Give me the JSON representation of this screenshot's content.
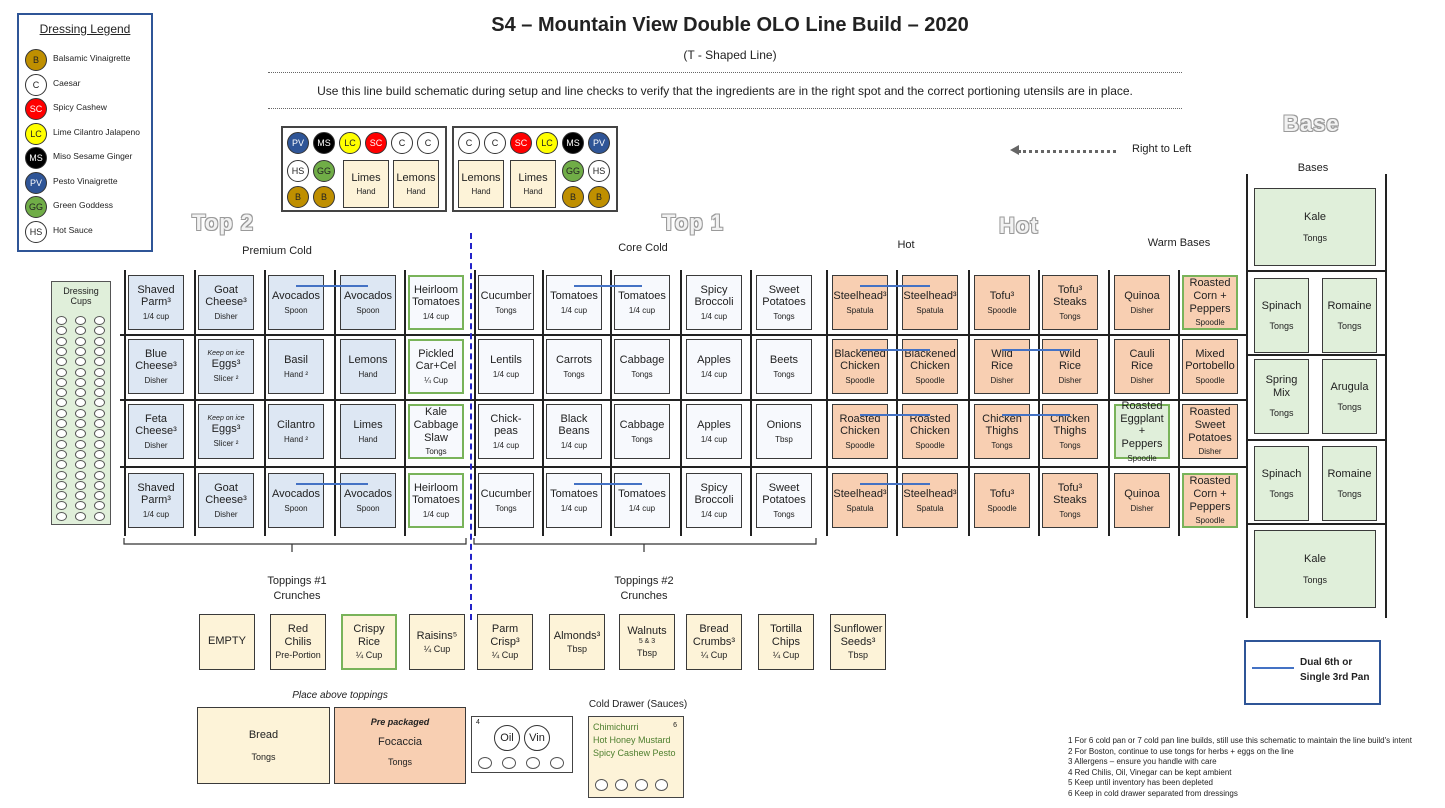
{
  "title": "S4 – Mountain View Double OLO Line Build – 2020",
  "subtitle": "(T -  Shaped Line)",
  "instruction": "Use this line build schematic during setup and line checks to verify that the ingredients are in the right spot and the correct portioning utensils are in place.",
  "direction": "Right to Left",
  "legend": {
    "title": "Dressing Legend",
    "items": [
      {
        "code": "B",
        "label": "Balsamic Vinaigrette",
        "color": "#bf8f00"
      },
      {
        "code": "C",
        "label": "Caesar",
        "color": "#ffffff"
      },
      {
        "code": "SC",
        "label": "Spicy Cashew",
        "color": "#ff0000"
      },
      {
        "code": "LC",
        "label": "Lime Cilantro Jalapeno",
        "color": "#ffff00"
      },
      {
        "code": "MS",
        "label": "Miso Sesame Ginger",
        "color": "#000000"
      },
      {
        "code": "PV",
        "label": "Pesto Vinaigrette",
        "color": "#2f5597"
      },
      {
        "code": "GG",
        "label": "Green Goddess",
        "color": "#70ad47"
      },
      {
        "code": "HS",
        "label": "Hot Sauce",
        "color": "#ffffff"
      }
    ]
  },
  "dressing_cups": "Dressing\nCups",
  "sections": {
    "top2": "Top 2",
    "top1": "Top 1",
    "hot": "Hot",
    "base": "Base",
    "premium_cold": "Premium Cold",
    "core_cold": "Core Cold",
    "hot_sub": "Hot",
    "warm_bases": "Warm Bases",
    "bases": "Bases",
    "toppings1": "Toppings #1\nCrunches",
    "toppings2": "Toppings #2\nCrunches",
    "place_above": "Place above toppings",
    "cold_drawer": "Cold Drawer (Sauces)"
  },
  "dressing_boxes": {
    "left": {
      "row1": [
        "PV",
        "MS",
        "LC",
        "SC",
        "C",
        "C"
      ],
      "row2": [
        "HS",
        "GG"
      ],
      "row3": [
        "B",
        "B"
      ],
      "pans": [
        {
          "name": "Limes",
          "utensil": "Hand"
        },
        {
          "name": "Lemons",
          "utensil": "Hand"
        }
      ]
    },
    "right": {
      "row1": [
        "C",
        "C",
        "SC",
        "LC",
        "MS",
        "PV"
      ],
      "row2": [
        "GG",
        "HS"
      ],
      "row3": [
        "B",
        "B"
      ],
      "pans": [
        {
          "name": "Lemons",
          "utensil": "Hand"
        },
        {
          "name": "Limes",
          "utensil": "Hand"
        }
      ]
    }
  },
  "grid": [
    [
      {
        "name": "Shaved\nParm³",
        "utensil": "1/4 cup"
      },
      {
        "name": "Goat\nCheese³",
        "utensil": "Disher"
      },
      {
        "name": "Avocados",
        "utensil": "Spoon"
      },
      {
        "name": "Avocados",
        "utensil": "Spoon"
      },
      {
        "name": "Heirloom\nTomatoes",
        "utensil": "1/4 cup"
      },
      {
        "name": "Cucumber",
        "utensil": "Tongs"
      },
      {
        "name": "Tomatoes",
        "utensil": "1/4 cup"
      },
      {
        "name": "Tomatoes",
        "utensil": "1/4 cup"
      },
      {
        "name": "Spicy\nBroccoli",
        "utensil": "1/4 cup"
      },
      {
        "name": "Sweet\nPotatoes",
        "utensil": "Tongs"
      },
      {
        "name": "Steelhead³",
        "utensil": "Spatula"
      },
      {
        "name": "Steelhead³",
        "utensil": "Spatula"
      },
      {
        "name": "Tofu³",
        "utensil": "Spoodle"
      },
      {
        "name": "Tofu³\nSteaks",
        "utensil": "Tongs"
      },
      {
        "name": "Quinoa",
        "utensil": "Disher"
      },
      {
        "name": "Roasted\nCorn +\nPeppers",
        "utensil": "Spoodle"
      }
    ],
    [
      {
        "name": "Blue\nCheese³",
        "utensil": "Disher"
      },
      {
        "name": "Eggs³",
        "utensil": "Slicer ²",
        "note": "Keep on ice"
      },
      {
        "name": "Basil",
        "utensil": "Hand ²"
      },
      {
        "name": "Lemons",
        "utensil": "Hand"
      },
      {
        "name": "Pickled\nCar+Cel",
        "utensil": "¼ Cup"
      },
      {
        "name": "Lentils",
        "utensil": "1/4 cup"
      },
      {
        "name": "Carrots",
        "utensil": "Tongs"
      },
      {
        "name": "Cabbage",
        "utensil": "Tongs"
      },
      {
        "name": "Apples",
        "utensil": "1/4 cup"
      },
      {
        "name": "Beets",
        "utensil": "Tongs"
      },
      {
        "name": "Blackened\nChicken",
        "utensil": "Spoodle"
      },
      {
        "name": "Blackened\nChicken",
        "utensil": "Spoodle"
      },
      {
        "name": "Wild\nRice",
        "utensil": "Disher"
      },
      {
        "name": "Wild\nRice",
        "utensil": "Disher"
      },
      {
        "name": "Cauli\nRice",
        "utensil": "Disher"
      },
      {
        "name": "Mixed\nPortobello",
        "utensil": "Spoodle"
      }
    ],
    [
      {
        "name": "Feta\nCheese³",
        "utensil": "Disher"
      },
      {
        "name": "Eggs³",
        "utensil": "Slicer ²",
        "note": "Keep on ice"
      },
      {
        "name": "Cilantro",
        "utensil": "Hand ²"
      },
      {
        "name": "Limes",
        "utensil": "Hand"
      },
      {
        "name": "Kale\nCabbage\nSlaw",
        "utensil": "Tongs"
      },
      {
        "name": "Chick-\npeas",
        "utensil": "1/4 cup"
      },
      {
        "name": "Black\nBeans",
        "utensil": "1/4 cup"
      },
      {
        "name": "Cabbage",
        "utensil": "Tongs"
      },
      {
        "name": "Apples",
        "utensil": "1/4 cup"
      },
      {
        "name": "Onions",
        "utensil": "Tbsp"
      },
      {
        "name": "Roasted\nChicken",
        "utensil": "Spoodle"
      },
      {
        "name": "Roasted\nChicken",
        "utensil": "Spoodle"
      },
      {
        "name": "Chicken\nThighs",
        "utensil": "Tongs"
      },
      {
        "name": "Chicken\nThighs",
        "utensil": "Tongs"
      },
      {
        "name": "Roasted\nEggplant +\nPeppers",
        "utensil": "Spoodle"
      },
      {
        "name": "Roasted\nSweet\nPotatoes",
        "utensil": "Disher"
      }
    ],
    [
      {
        "name": "Shaved\nParm³",
        "utensil": "1/4 cup"
      },
      {
        "name": "Goat\nCheese³",
        "utensil": "Disher"
      },
      {
        "name": "Avocados",
        "utensil": "Spoon"
      },
      {
        "name": "Avocados",
        "utensil": "Spoon"
      },
      {
        "name": "Heirloom\nTomatoes",
        "utensil": "1/4 cup"
      },
      {
        "name": "Cucumber",
        "utensil": "Tongs"
      },
      {
        "name": "Tomatoes",
        "utensil": "1/4 cup"
      },
      {
        "name": "Tomatoes",
        "utensil": "1/4 cup"
      },
      {
        "name": "Spicy\nBroccoli",
        "utensil": "1/4 cup"
      },
      {
        "name": "Sweet\nPotatoes",
        "utensil": "Tongs"
      },
      {
        "name": "Steelhead³",
        "utensil": "Spatula"
      },
      {
        "name": "Steelhead³",
        "utensil": "Spatula"
      },
      {
        "name": "Tofu³",
        "utensil": "Spoodle"
      },
      {
        "name": "Tofu³\nSteaks",
        "utensil": "Tongs"
      },
      {
        "name": "Quinoa",
        "utensil": "Disher"
      },
      {
        "name": "Roasted\nCorn +\nPeppers",
        "utensil": "Spoodle"
      }
    ]
  ],
  "bases": [
    {
      "name": "Kale",
      "utensil": "Tongs"
    },
    {
      "name": "Spinach",
      "utensil": "Tongs"
    },
    {
      "name": "Romaine",
      "utensil": "Tongs"
    },
    {
      "name": "Spring\nMix",
      "utensil": "Tongs"
    },
    {
      "name": "Arugula",
      "utensil": "Tongs"
    },
    {
      "name": "Spinach",
      "utensil": "Tongs"
    },
    {
      "name": "Romaine",
      "utensil": "Tongs"
    },
    {
      "name": "Kale",
      "utensil": "Tongs"
    }
  ],
  "toppings": [
    {
      "name": "EMPTY",
      "utensil": ""
    },
    {
      "name": "Red\nChilis",
      "utensil": "Pre-Portion"
    },
    {
      "name": "Crispy\nRice",
      "utensil": "¼ Cup"
    },
    {
      "name": "Raisins⁵",
      "utensil": "¼ Cup"
    },
    {
      "name": "Parm\nCrisp³",
      "utensil": "¼ Cup"
    },
    {
      "name": "Almonds³",
      "utensil": "Tbsp"
    },
    {
      "name": "Walnuts",
      "utensil": "Tbsp",
      "sup": "5 & 3"
    },
    {
      "name": "Bread\nCrumbs³",
      "utensil": "¼ Cup"
    },
    {
      "name": "Tortilla\nChips",
      "utensil": "¼ Cup"
    },
    {
      "name": "Sunflower\nSeeds³",
      "utensil": "Tbsp"
    }
  ],
  "bread": {
    "name": "Bread",
    "utensil": "Tongs"
  },
  "focaccia": {
    "note": "Pre packaged",
    "name": "Focaccia",
    "utensil": "Tongs"
  },
  "oil_vin": {
    "num": "4",
    "oil": "Oil",
    "vin": "Vin"
  },
  "sauces": {
    "items": [
      "Chimichurri",
      "Hot Honey Mustard",
      "Spicy Cashew Pesto"
    ],
    "num": "6"
  },
  "dual_pan": "Dual 6th or\nSingle 3rd Pan",
  "footnotes": [
    "1 For 6 cold pan or 7 cold pan line builds, still use this schematic to maintain the line build's intent",
    "2 For Boston, continue to use tongs for herbs + eggs on the line",
    "3 Allergens – ensure you handle with care",
    "4 Red Chilis, Oil, Vinegar can be kept ambient",
    "5 Keep until inventory has been depleted",
    "6 Keep in cold drawer separated from dressings"
  ],
  "colors": {
    "premium": "#dde7f3",
    "core": "#f7f9fd",
    "hot": "#f8cfb2",
    "base": "#e0efda",
    "topping": "#fdf3d8",
    "dual_line": "#4472c4"
  }
}
